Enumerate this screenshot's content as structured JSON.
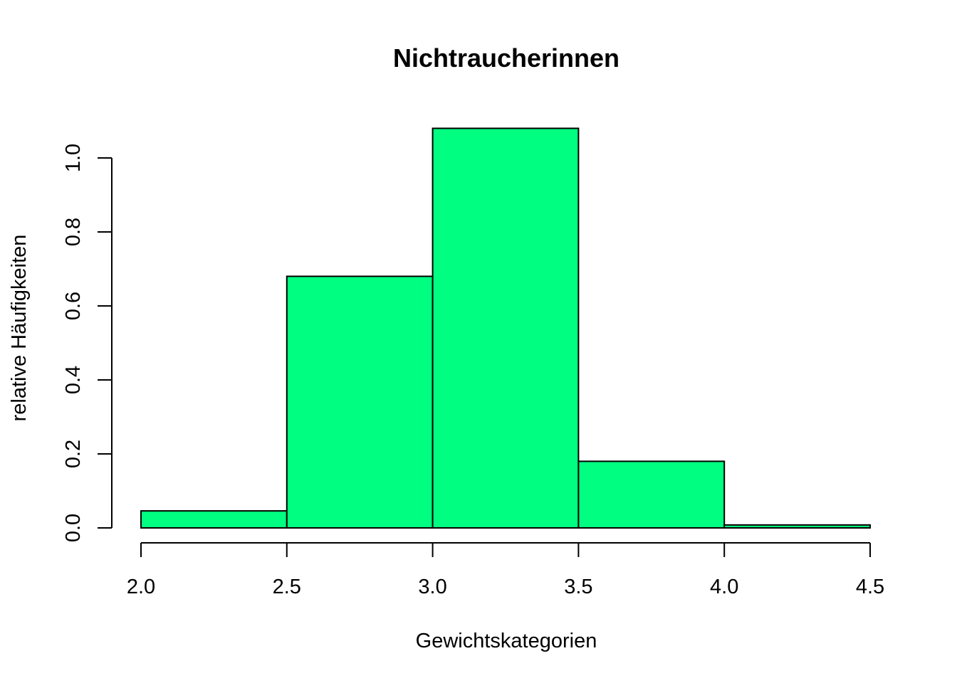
{
  "chart_data": {
    "type": "bar",
    "subtype": "histogram",
    "title": "Nichtraucherinnen",
    "xlabel": "Gewichtskategorien",
    "ylabel": "relative Häufigkeiten",
    "bins": [
      {
        "from": 2.0,
        "to": 2.5,
        "value": 0.046
      },
      {
        "from": 2.5,
        "to": 3.0,
        "value": 0.68
      },
      {
        "from": 3.0,
        "to": 3.5,
        "value": 1.08
      },
      {
        "from": 3.5,
        "to": 4.0,
        "value": 0.18
      },
      {
        "from": 4.0,
        "to": 4.5,
        "value": 0.008
      }
    ],
    "xlim": [
      2.0,
      4.5
    ],
    "ylim": [
      0,
      1.08
    ],
    "x_ticks": [
      "2.0",
      "2.5",
      "3.0",
      "3.5",
      "4.0",
      "4.5"
    ],
    "y_ticks": [
      "0.0",
      "0.2",
      "0.4",
      "0.6",
      "0.8",
      "1.0"
    ],
    "bar_color": "#00ff80",
    "edge_color": "#000000",
    "grid": false,
    "legend": "none"
  }
}
